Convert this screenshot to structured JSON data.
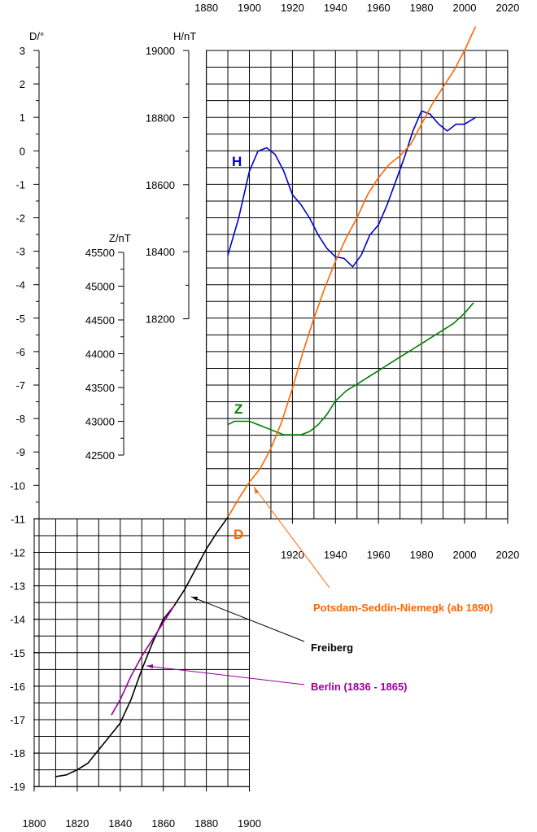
{
  "chart_data": {
    "type": "line",
    "axes": {
      "x_top": {
        "ticks": [
          1880,
          1900,
          1920,
          1940,
          1960,
          1980,
          2000,
          2020
        ]
      },
      "x_mid": {
        "ticks": [
          1920,
          1940,
          1960,
          1980,
          2000,
          2020
        ]
      },
      "x_bottom": {
        "ticks": [
          1800,
          1820,
          1840,
          1860,
          1880,
          1900
        ]
      },
      "D": {
        "unit_label": "D/°",
        "ylim": [
          -19,
          3
        ],
        "ticks": [
          3,
          2,
          1,
          0,
          -1,
          -2,
          -3,
          -4,
          -5,
          -6,
          -7,
          -8,
          -9,
          -10,
          -11,
          -12,
          -13,
          -14,
          -15,
          -16,
          -17,
          -18,
          -19
        ]
      },
      "H": {
        "unit_label": "H/nT",
        "ylim": [
          18200,
          19000
        ],
        "ticks": [
          19000,
          18800,
          18600,
          18400,
          18200
        ]
      },
      "Z": {
        "unit_label": "Z/nT",
        "ylim": [
          42500,
          45500
        ],
        "ticks": [
          45500,
          45000,
          44500,
          44000,
          43500,
          43000,
          42500
        ]
      }
    },
    "series": [
      {
        "letter": "H",
        "color": "#0000cc",
        "axis": "H",
        "x": [
          1890,
          1895,
          1900,
          1904,
          1908,
          1912,
          1916,
          1920,
          1924,
          1928,
          1932,
          1936,
          1940,
          1944,
          1948,
          1952,
          1956,
          1960,
          1964,
          1968,
          1972,
          1976,
          1980,
          1984,
          1988,
          1992,
          1996,
          2000,
          2005
        ],
        "y": [
          18390,
          18500,
          18640,
          18700,
          18710,
          18690,
          18640,
          18570,
          18540,
          18500,
          18450,
          18410,
          18385,
          18380,
          18355,
          18390,
          18450,
          18480,
          18540,
          18610,
          18680,
          18760,
          18820,
          18810,
          18780,
          18760,
          18780,
          18780,
          18800
        ]
      },
      {
        "letter": "Z",
        "color": "#008000",
        "axis": "Z",
        "x": [
          1890,
          1893,
          1896,
          1900,
          1904,
          1908,
          1912,
          1916,
          1920,
          1924,
          1928,
          1932,
          1936,
          1940,
          1945,
          1950,
          1955,
          1960,
          1965,
          1970,
          1975,
          1980,
          1985,
          1990,
          1995,
          2000,
          2004
        ],
        "y": [
          42950,
          43000,
          43000,
          43000,
          42950,
          42900,
          42850,
          42800,
          42800,
          42800,
          42850,
          42950,
          43100,
          43300,
          43450,
          43550,
          43650,
          43750,
          43850,
          43950,
          44050,
          44150,
          44250,
          44350,
          44450,
          44600,
          44750
        ]
      },
      {
        "letter": "D",
        "color": "#ff6600",
        "axis": "D",
        "x": [
          1890,
          1895,
          1900,
          1905,
          1910,
          1915,
          1920,
          1925,
          1930,
          1935,
          1940,
          1945,
          1950,
          1955,
          1960,
          1965,
          1970,
          1975,
          1980,
          1985,
          1990,
          1995,
          2000,
          2005
        ],
        "y": [
          -10.95,
          -10.4,
          -9.9,
          -9.5,
          -8.9,
          -8.1,
          -7.1,
          -6.0,
          -5.0,
          -4.1,
          -3.3,
          -2.6,
          -2.0,
          -1.3,
          -0.8,
          -0.4,
          -0.15,
          0.2,
          0.8,
          1.4,
          1.9,
          2.4,
          3.0,
          3.7
        ]
      },
      {
        "color": "#000000",
        "axis": "D",
        "x": [
          1810,
          1815,
          1820,
          1825,
          1830,
          1835,
          1840,
          1845,
          1850,
          1855,
          1860,
          1865,
          1870,
          1875,
          1880,
          1885,
          1890
        ],
        "y": [
          -18.7,
          -18.65,
          -18.5,
          -18.3,
          -17.9,
          -17.5,
          -17.1,
          -16.4,
          -15.5,
          -14.7,
          -14.0,
          -13.6,
          -13.1,
          -12.5,
          -11.9,
          -11.4,
          -10.95
        ]
      },
      {
        "color": "#990099",
        "axis": "D",
        "x": [
          1836,
          1840,
          1845,
          1850,
          1855,
          1860,
          1865
        ],
        "y": [
          -16.85,
          -16.4,
          -15.7,
          -15.1,
          -14.6,
          -14.1,
          -13.6
        ]
      }
    ],
    "annotations": [
      {
        "text": "Potsdam-Seddin-Niemegk (ab 1890)",
        "color": "#ff6600"
      },
      {
        "text": "Freiberg",
        "color": "#000000"
      },
      {
        "text": "Berlin (1836 - 1865)",
        "color": "#990099"
      }
    ]
  }
}
